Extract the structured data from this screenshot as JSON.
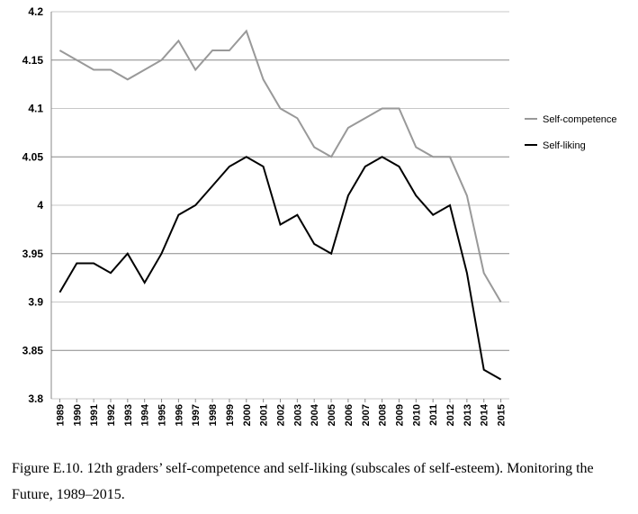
{
  "caption": "Figure E.10. 12th graders’ self-competence and self-liking (subscales of self-esteem). Monitoring the Future, 1989–2015.",
  "chart_data": {
    "type": "line",
    "x": [
      "1989",
      "1990",
      "1991",
      "1992",
      "1993",
      "1994",
      "1995",
      "1996",
      "1997",
      "1998",
      "1999",
      "2000",
      "2001",
      "2002",
      "2003",
      "2004",
      "2005",
      "2006",
      "2007",
      "2008",
      "2009",
      "2010",
      "2011",
      "2012",
      "2013",
      "2014",
      "2015"
    ],
    "series": [
      {
        "name": "Self-competence",
        "color": "#999999",
        "values": [
          4.16,
          4.15,
          4.14,
          4.14,
          4.13,
          4.14,
          4.15,
          4.17,
          4.14,
          4.16,
          4.16,
          4.18,
          4.13,
          4.1,
          4.09,
          4.06,
          4.05,
          4.08,
          4.09,
          4.1,
          4.1,
          4.06,
          4.05,
          4.05,
          4.01,
          3.93,
          3.9
        ]
      },
      {
        "name": "Self-liking",
        "color": "#000000",
        "values": [
          3.91,
          3.94,
          3.94,
          3.93,
          3.95,
          3.92,
          3.95,
          3.99,
          4.0,
          4.02,
          4.04,
          4.05,
          4.04,
          3.98,
          3.99,
          3.96,
          3.95,
          4.01,
          4.04,
          4.05,
          4.04,
          4.01,
          3.99,
          4.0,
          3.93,
          3.83,
          3.82
        ]
      }
    ],
    "yticks": [
      "4.2",
      "4.15",
      "4.1",
      "4.05",
      "4",
      "3.95",
      "3.9",
      "3.85",
      "3.8"
    ],
    "ylim": [
      3.8,
      4.2
    ],
    "legend_position": "right",
    "grid": true
  }
}
